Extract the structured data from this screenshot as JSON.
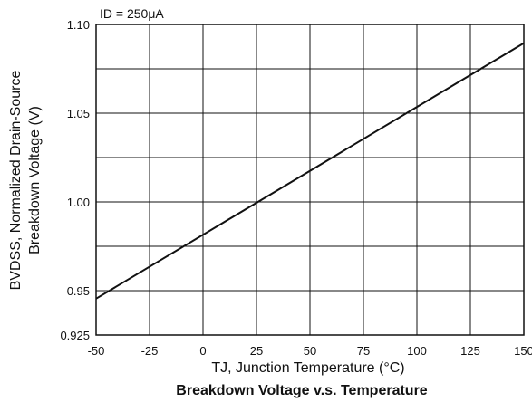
{
  "chart_data": {
    "type": "line",
    "title": "Breakdown Voltage v.s. Temperature",
    "xlabel": "TJ, Junction Temperature (°C)",
    "ylabel_line1": "BVDSS, Normalized Drain-Source",
    "ylabel_line2": "Breakdown Voltage (V)",
    "annotation": "ID = 250μA",
    "xlim": [
      -50,
      150
    ],
    "ylim": [
      0.925,
      1.1
    ],
    "x_ticks": [
      -50,
      -25,
      0,
      25,
      50,
      75,
      100,
      125,
      150
    ],
    "x_tick_labels": [
      "-50",
      "-25",
      "0",
      "25",
      "50",
      "75",
      "100",
      "125",
      "150"
    ],
    "y_ticks": [
      0.925,
      0.95,
      1.0,
      1.05,
      1.1
    ],
    "y_tick_labels": [
      "0.925",
      "0.95",
      "1.00",
      "1.05",
      "1.10"
    ],
    "y_grid": [
      0.95,
      0.975,
      1.0,
      1.025,
      1.05,
      1.075,
      1.1
    ],
    "grid": true,
    "series": [
      {
        "x": [
          -50,
          150
        ],
        "y": [
          0.9455,
          1.0895
        ],
        "color": "#111111"
      }
    ]
  }
}
